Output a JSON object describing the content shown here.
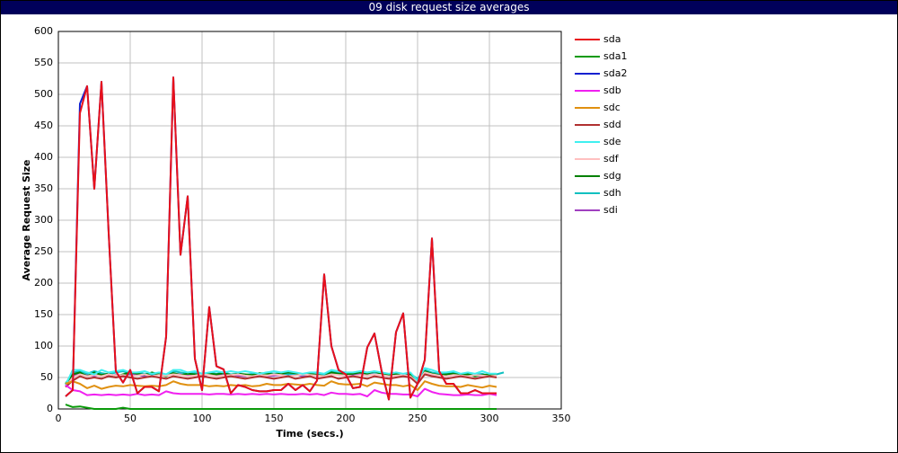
{
  "chart_data": {
    "type": "line",
    "title": "09 disk request size averages",
    "x_label": "Time (secs.)",
    "y_label": "Average Request Size",
    "xlim": [
      0,
      350
    ],
    "xticks": [
      0,
      50,
      100,
      150,
      200,
      250,
      300,
      350
    ],
    "ylim": [
      0,
      600
    ],
    "yticks": [
      0,
      50,
      100,
      150,
      200,
      250,
      300,
      350,
      400,
      450,
      500,
      550,
      600
    ],
    "grid": true,
    "legend": "right",
    "x": [
      5,
      10,
      15,
      20,
      25,
      30,
      35,
      40,
      45,
      50,
      55,
      60,
      65,
      70,
      75,
      80,
      85,
      90,
      95,
      100,
      105,
      110,
      115,
      120,
      125,
      130,
      135,
      140,
      145,
      150,
      155,
      160,
      165,
      170,
      175,
      180,
      185,
      190,
      195,
      200,
      205,
      210,
      215,
      220,
      225,
      230,
      235,
      240,
      245,
      250,
      255,
      260,
      265,
      270,
      275,
      280,
      285,
      290,
      295,
      300,
      305,
      310
    ],
    "series": [
      {
        "name": "sda",
        "color": "#e8101a",
        "values": [
          20,
          30,
          470,
          513,
          350,
          520,
          280,
          60,
          42,
          62,
          25,
          35,
          35,
          28,
          115,
          527,
          245,
          338,
          80,
          30,
          162,
          68,
          63,
          25,
          38,
          35,
          30,
          28,
          28,
          30,
          30,
          40,
          30,
          38,
          28,
          45,
          214,
          100,
          62,
          55,
          33,
          35,
          98,
          120,
          60,
          15,
          122,
          152,
          18,
          40,
          78,
          271,
          60,
          40,
          40,
          25,
          25,
          30,
          25,
          25,
          25,
          null
        ]
      },
      {
        "name": "sda1",
        "color": "#0a9a0a",
        "values": [
          7,
          3,
          4,
          2,
          0,
          0,
          0,
          0,
          2,
          0,
          0,
          0,
          0,
          0,
          0,
          0,
          0,
          0,
          0,
          0,
          0,
          0,
          0,
          0,
          0,
          0,
          0,
          0,
          0,
          0,
          0,
          0,
          0,
          0,
          0,
          0,
          0,
          0,
          0,
          0,
          0,
          0,
          0,
          0,
          0,
          0,
          0,
          0,
          0,
          0,
          0,
          0,
          0,
          0,
          0,
          0,
          0,
          0,
          0,
          0,
          0,
          null
        ]
      },
      {
        "name": "sda2",
        "color": "#1020d0",
        "values": [
          20,
          30,
          485,
          513,
          350,
          520,
          280,
          60,
          42,
          62,
          25,
          35,
          35,
          28,
          115,
          527,
          245,
          338,
          80,
          30,
          162,
          68,
          63,
          25,
          38,
          35,
          30,
          28,
          28,
          30,
          30,
          40,
          30,
          38,
          28,
          45,
          214,
          100,
          62,
          55,
          33,
          35,
          98,
          120,
          60,
          15,
          122,
          152,
          18,
          40,
          78,
          271,
          60,
          40,
          40,
          25,
          25,
          30,
          25,
          25,
          25,
          null
        ]
      },
      {
        "name": "sdb",
        "color": "#f020f0",
        "values": [
          38,
          30,
          28,
          22,
          23,
          22,
          23,
          22,
          23,
          22,
          24,
          22,
          23,
          22,
          28,
          25,
          24,
          24,
          24,
          24,
          23,
          24,
          24,
          23,
          24,
          23,
          24,
          23,
          24,
          23,
          24,
          23,
          23,
          24,
          23,
          24,
          22,
          26,
          24,
          24,
          23,
          24,
          20,
          30,
          26,
          24,
          24,
          23,
          23,
          20,
          32,
          27,
          24,
          23,
          22,
          22,
          23,
          22,
          22,
          24,
          22,
          null
        ]
      },
      {
        "name": "sdc",
        "color": "#e09010",
        "values": [
          40,
          44,
          40,
          33,
          37,
          32,
          35,
          37,
          36,
          38,
          37,
          36,
          37,
          36,
          38,
          44,
          40,
          38,
          38,
          38,
          36,
          37,
          36,
          38,
          37,
          38,
          36,
          37,
          40,
          38,
          38,
          40,
          39,
          38,
          40,
          38,
          37,
          44,
          40,
          39,
          39,
          40,
          36,
          42,
          40,
          38,
          38,
          36,
          38,
          30,
          44,
          40,
          37,
          36,
          36,
          35,
          38,
          36,
          34,
          37,
          35,
          null
        ]
      },
      {
        "name": "sdd",
        "color": "#b03030",
        "values": [
          35,
          45,
          52,
          48,
          50,
          48,
          52,
          50,
          52,
          50,
          48,
          50,
          52,
          50,
          48,
          52,
          50,
          48,
          50,
          52,
          50,
          48,
          50,
          52,
          50,
          48,
          50,
          52,
          50,
          48,
          50,
          52,
          48,
          50,
          52,
          48,
          50,
          52,
          48,
          50,
          52,
          50,
          48,
          52,
          50,
          48,
          50,
          52,
          50,
          40,
          55,
          52,
          50,
          48,
          50,
          52,
          50,
          48,
          50,
          52,
          50,
          null
        ]
      },
      {
        "name": "sde",
        "color": "#40f0f0",
        "values": [
          38,
          62,
          62,
          58,
          55,
          62,
          58,
          60,
          62,
          58,
          58,
          60,
          56,
          58,
          55,
          62,
          62,
          58,
          60,
          56,
          58,
          60,
          58,
          60,
          58,
          60,
          58,
          56,
          58,
          60,
          58,
          60,
          58,
          56,
          58,
          58,
          56,
          62,
          60,
          58,
          58,
          60,
          58,
          60,
          58,
          56,
          58,
          56,
          58,
          45,
          65,
          62,
          58,
          58,
          60,
          56,
          58,
          56,
          60,
          56,
          56,
          null
        ]
      },
      {
        "name": "sdf",
        "color": "#ffc0c0",
        "values": [
          35,
          50,
          55,
          52,
          54,
          52,
          55,
          53,
          54,
          52,
          53,
          55,
          52,
          54,
          53,
          55,
          54,
          52,
          53,
          55,
          54,
          52,
          53,
          54,
          55,
          53,
          52,
          54,
          53,
          55,
          54,
          52,
          53,
          55,
          54,
          53,
          52,
          55,
          54,
          53,
          52,
          54,
          53,
          55,
          54,
          52,
          53,
          54,
          52,
          42,
          58,
          55,
          53,
          52,
          54,
          53,
          52,
          54,
          53,
          52,
          53,
          null
        ]
      },
      {
        "name": "sdg",
        "color": "#008000",
        "values": [
          40,
          55,
          58,
          52,
          58,
          54,
          56,
          52,
          55,
          58,
          56,
          54,
          58,
          55,
          52,
          57,
          54,
          56,
          55,
          54,
          56,
          55,
          57,
          54,
          56,
          55,
          54,
          57,
          56,
          55,
          56,
          58,
          57,
          55,
          56,
          54,
          52,
          58,
          56,
          55,
          56,
          58,
          56,
          60,
          55,
          54,
          56,
          52,
          55,
          42,
          60,
          56,
          54,
          55,
          56,
          54,
          55,
          52,
          54,
          55,
          54,
          null
        ]
      },
      {
        "name": "sdh",
        "color": "#10c0c0",
        "values": [
          40,
          58,
          60,
          56,
          60,
          57,
          55,
          58,
          60,
          56,
          58,
          56,
          55,
          57,
          54,
          60,
          58,
          56,
          57,
          55,
          57,
          56,
          58,
          55,
          56,
          54,
          56,
          55,
          58,
          56,
          57,
          55,
          56,
          54,
          56,
          55,
          54,
          60,
          57,
          58,
          56,
          58,
          57,
          58,
          56,
          55,
          57,
          55,
          56,
          48,
          62,
          58,
          56,
          57,
          58,
          55,
          56,
          54,
          56,
          52,
          55,
          58
        ]
      },
      {
        "name": "sdi",
        "color": "#a040c0",
        "values": [
          38,
          52,
          56,
          54,
          52,
          55,
          53,
          54,
          52,
          55,
          54,
          52,
          54,
          55,
          53,
          56,
          55,
          53,
          54,
          52,
          55,
          53,
          54,
          55,
          53,
          52,
          55,
          54,
          52,
          53,
          54,
          53,
          55,
          52,
          54,
          53,
          55,
          56,
          54,
          53,
          54,
          55,
          53,
          56,
          54,
          52,
          54,
          53,
          52,
          40,
          58,
          54,
          53,
          52,
          54,
          53,
          55,
          53,
          52,
          54,
          53,
          null
        ]
      }
    ]
  }
}
